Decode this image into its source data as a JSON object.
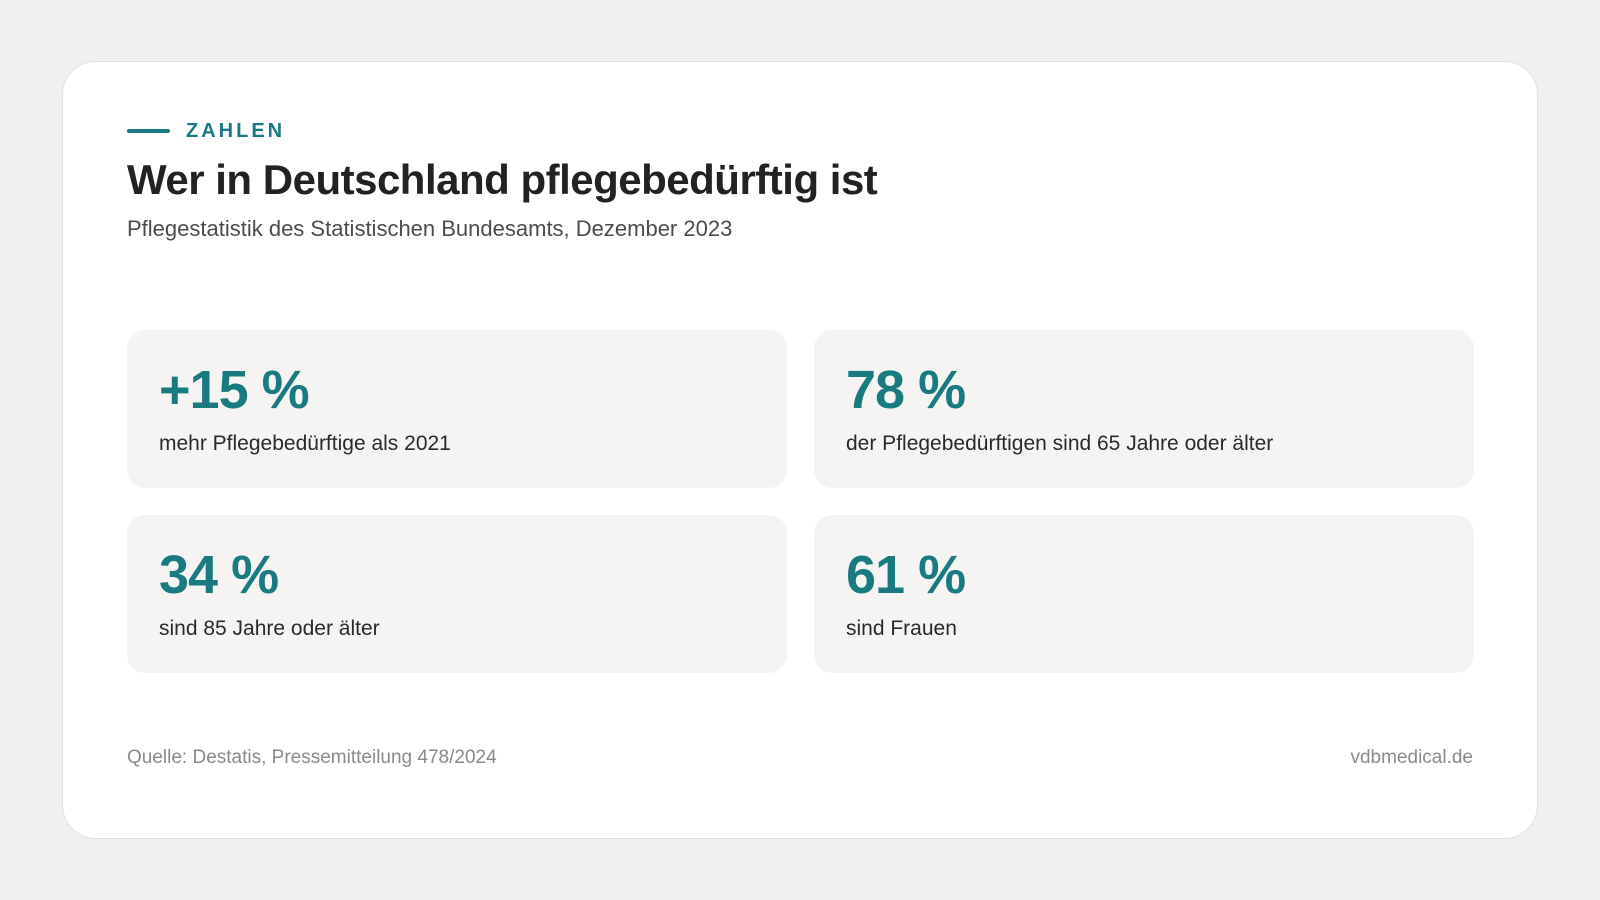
{
  "colors": {
    "accent": "#197b80",
    "page_background": "#f1f0ee",
    "card_background": "#ffffff",
    "tile_background": "#f5f4f2"
  },
  "header": {
    "eyebrow": "ZAHLEN",
    "title": "Wer in Deutschland pflegebedürftig ist",
    "subtitle": "Pflegestatistik des Statistischen Bundesamts, Dezember 2023"
  },
  "stats": [
    {
      "value": "+15 %",
      "label": "mehr Pflegebedürftige als 2021"
    },
    {
      "value": "78 %",
      "label": "der Pflegebedürftigen sind 65 Jahre oder älter"
    },
    {
      "value": "34 %",
      "label": "sind 85 Jahre oder älter"
    },
    {
      "value": "61 %",
      "label": "sind Frauen"
    }
  ],
  "footer": {
    "source": "Quelle: Destatis, Pressemitteilung 478/2024",
    "brand": "vdbmedical.de"
  }
}
